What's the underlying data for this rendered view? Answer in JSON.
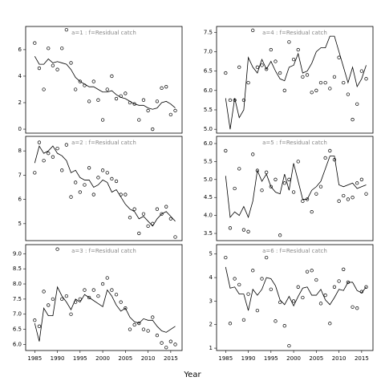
{
  "xlabel": "Year",
  "chart_data": [
    {
      "type": "line",
      "title": "a=1 : f=Residual catch",
      "x": [
        1985,
        1986,
        1987,
        1988,
        1989,
        1990,
        1991,
        1992,
        1993,
        1994,
        1995,
        1996,
        1997,
        1998,
        1999,
        2000,
        2001,
        2002,
        2003,
        2004,
        2005,
        2006,
        2007,
        2008,
        2009,
        2010,
        2011,
        2012,
        2013,
        2014,
        2015,
        2016
      ],
      "xlim": [
        1983,
        2017.5
      ],
      "ylim": [
        -0.3,
        7.75
      ],
      "yticks": [
        0,
        2,
        4,
        6
      ],
      "series": [
        {
          "marker": "circle",
          "color": "#000000",
          "values": [
            6.5,
            4.6,
            3.0,
            6.1,
            4.8,
            4.5,
            6.1,
            7.5,
            5.0,
            3.0,
            3.6,
            3.3,
            2.1,
            3.6,
            2.2,
            0.7,
            3.0,
            4.0,
            2.3,
            2.5,
            2.7,
            2.0,
            1.9,
            0.7,
            2.2,
            1.4,
            0.0,
            2.1,
            3.1,
            3.2,
            1.1,
            1.4
          ]
        },
        {
          "marker": "none",
          "color": "#000000",
          "values": [
            5.5,
            4.9,
            4.9,
            5.3,
            5.0,
            5.1,
            5.0,
            4.9,
            4.5,
            3.9,
            3.6,
            3.4,
            3.2,
            3.2,
            3.0,
            2.8,
            2.8,
            2.9,
            2.6,
            2.4,
            2.3,
            2.1,
            1.9,
            1.8,
            1.8,
            1.6,
            1.5,
            1.6,
            2.0,
            2.1,
            1.9,
            1.6
          ]
        }
      ]
    },
    {
      "type": "line",
      "title": "a=2 : f=Residual catch",
      "x": [
        1985,
        1986,
        1987,
        1988,
        1989,
        1990,
        1991,
        1992,
        1993,
        1994,
        1995,
        1996,
        1997,
        1998,
        1999,
        2000,
        2001,
        2002,
        2003,
        2004,
        2005,
        2006,
        2007,
        2008,
        2009,
        2010,
        2011,
        2012,
        2013,
        2014,
        2015,
        2016
      ],
      "xlim": [
        1983,
        2017.5
      ],
      "ylim": [
        4.3,
        8.6
      ],
      "yticks": [
        5,
        6,
        7,
        8
      ],
      "series": [
        {
          "marker": "circle",
          "color": "#000000",
          "values": [
            7.1,
            8.35,
            7.6,
            7.9,
            7.75,
            8.1,
            7.2,
            8.25,
            6.1,
            6.7,
            6.3,
            6.6,
            7.3,
            6.2,
            6.9,
            7.2,
            7.1,
            6.85,
            6.75,
            6.2,
            6.2,
            5.25,
            5.6,
            4.6,
            5.4,
            4.9,
            5.0,
            5.6,
            5.4,
            5.7,
            5.2,
            4.45
          ]
        },
        {
          "marker": "none",
          "color": "#000000",
          "values": [
            7.5,
            8.2,
            7.9,
            8.0,
            8.2,
            7.9,
            7.8,
            7.6,
            7.1,
            7.2,
            6.9,
            6.8,
            6.8,
            6.5,
            6.6,
            6.8,
            6.7,
            6.3,
            6.4,
            6.1,
            5.8,
            5.6,
            5.5,
            5.2,
            5.3,
            5.1,
            4.9,
            5.2,
            5.4,
            5.5,
            5.3,
            5.1
          ]
        }
      ]
    },
    {
      "type": "line",
      "title": "a=3 : f=Residual catch",
      "x": [
        1985,
        1986,
        1987,
        1988,
        1989,
        1990,
        1991,
        1992,
        1993,
        1994,
        1995,
        1996,
        1997,
        1998,
        1999,
        2000,
        2001,
        2002,
        2003,
        2004,
        2005,
        2006,
        2007,
        2008,
        2009,
        2010,
        2011,
        2012,
        2013,
        2014,
        2015,
        2016
      ],
      "xlim": [
        1983,
        2017.5
      ],
      "xticks": [
        1985,
        1990,
        1995,
        2000,
        2005,
        2010,
        2015
      ],
      "ylim": [
        5.8,
        9.3
      ],
      "yticks": [
        {
          "value": 6,
          "label": "6.0"
        },
        6.5,
        {
          "value": 7,
          "label": "7.0"
        },
        7.5,
        {
          "value": 8,
          "label": "8.0"
        },
        8.5,
        {
          "value": 9,
          "label": "9.0"
        }
      ],
      "series": [
        {
          "marker": "circle",
          "color": "#000000",
          "values": [
            6.8,
            6.6,
            7.75,
            7.3,
            7.5,
            9.15,
            7.5,
            7.6,
            7.0,
            7.4,
            7.5,
            7.8,
            7.55,
            7.8,
            7.6,
            8.0,
            8.2,
            7.8,
            7.65,
            7.4,
            7.2,
            6.5,
            6.65,
            6.7,
            6.5,
            6.45,
            6.9,
            6.3,
            6.05,
            5.9,
            6.1,
            6.0
          ]
        },
        {
          "marker": "none",
          "color": "#000000",
          "values": [
            6.7,
            6.1,
            7.2,
            6.95,
            6.95,
            7.9,
            7.6,
            7.4,
            7.15,
            7.5,
            7.4,
            7.65,
            7.55,
            7.45,
            7.35,
            7.25,
            7.8,
            7.6,
            7.3,
            7.1,
            7.2,
            6.9,
            6.75,
            6.7,
            6.85,
            6.8,
            6.8,
            6.6,
            6.45,
            6.4,
            6.5,
            6.6
          ]
        }
      ]
    },
    {
      "type": "line",
      "title": "a=4 : f=Residual catch",
      "x": [
        1985,
        1986,
        1987,
        1988,
        1989,
        1990,
        1991,
        1992,
        1993,
        1994,
        1995,
        1996,
        1997,
        1998,
        1999,
        2000,
        2001,
        2002,
        2003,
        2004,
        2005,
        2006,
        2007,
        2008,
        2009,
        2010,
        2011,
        2012,
        2013,
        2014,
        2015,
        2016
      ],
      "xlim": [
        1983,
        2017.5
      ],
      "ylim": [
        4.9,
        7.65
      ],
      "yticks": [
        {
          "value": 5,
          "label": "5.0"
        },
        5.5,
        {
          "value": 6,
          "label": "6.0"
        },
        6.5,
        {
          "value": 7,
          "label": "7.0"
        },
        7.5
      ],
      "series": [
        {
          "marker": "circle",
          "color": "#000000",
          "values": [
            6.45,
            5.75,
            5.75,
            6.6,
            5.75,
            6.2,
            7.55,
            6.6,
            6.65,
            6.55,
            7.05,
            6.75,
            6.45,
            6.0,
            7.25,
            6.8,
            7.05,
            6.35,
            6.4,
            5.95,
            6.0,
            6.2,
            6.2,
            6.05,
            6.35,
            6.85,
            6.2,
            5.9,
            5.25,
            5.65,
            6.5,
            6.3
          ]
        },
        {
          "marker": "none",
          "color": "#000000",
          "values": [
            5.8,
            5.0,
            5.8,
            5.3,
            5.5,
            6.85,
            6.6,
            6.45,
            6.8,
            6.55,
            6.75,
            6.5,
            6.3,
            6.25,
            6.6,
            6.65,
            6.95,
            6.45,
            6.5,
            6.7,
            7.0,
            7.1,
            7.1,
            7.4,
            7.4,
            7.0,
            6.6,
            6.2,
            6.6,
            6.1,
            6.3,
            6.65
          ]
        }
      ]
    },
    {
      "type": "line",
      "title": "a=5 : f=Residual catch",
      "x": [
        1985,
        1986,
        1987,
        1988,
        1989,
        1990,
        1991,
        1992,
        1993,
        1994,
        1995,
        1996,
        1997,
        1998,
        1999,
        2000,
        2001,
        2002,
        2003,
        2004,
        2005,
        2006,
        2007,
        2008,
        2009,
        2010,
        2011,
        2012,
        2013,
        2014,
        2015,
        2016
      ],
      "xlim": [
        1983,
        2017.5
      ],
      "ylim": [
        3.3,
        6.2
      ],
      "yticks": [
        3.5,
        {
          "value": 4,
          "label": "4.0"
        },
        4.5,
        {
          "value": 5,
          "label": "5.0"
        },
        5.5,
        {
          "value": 6,
          "label": "6.0"
        }
      ],
      "series": [
        {
          "marker": "circle",
          "color": "#000000",
          "values": [
            5.8,
            3.65,
            4.75,
            5.3,
            3.6,
            3.55,
            5.7,
            5.25,
            4.7,
            5.2,
            4.8,
            5.0,
            3.45,
            4.9,
            5.0,
            4.65,
            5.5,
            4.4,
            4.45,
            4.1,
            4.6,
            4.8,
            5.6,
            5.8,
            5.55,
            4.4,
            4.55,
            4.45,
            4.5,
            4.9,
            5.0,
            4.6
          ]
        },
        {
          "marker": "none",
          "color": "#000000",
          "values": [
            5.1,
            3.95,
            4.1,
            4.0,
            4.25,
            3.95,
            4.4,
            5.25,
            4.95,
            5.15,
            4.8,
            4.65,
            4.6,
            5.15,
            4.7,
            5.45,
            4.95,
            4.45,
            4.45,
            4.7,
            4.8,
            4.95,
            5.3,
            5.65,
            5.65,
            4.85,
            4.8,
            4.85,
            4.9,
            4.75,
            4.8,
            4.85
          ]
        }
      ]
    },
    {
      "type": "line",
      "title": "a=6 : f=Residual catch",
      "x": [
        1985,
        1986,
        1987,
        1988,
        1989,
        1990,
        1991,
        1992,
        1993,
        1994,
        1995,
        1996,
        1997,
        1998,
        1999,
        2000,
        2001,
        2002,
        2003,
        2004,
        2005,
        2006,
        2007,
        2008,
        2009,
        2010,
        2011,
        2012,
        2013,
        2014,
        2015,
        2016
      ],
      "xlim": [
        1983,
        2017.5
      ],
      "xticks": [
        1985,
        1990,
        1995,
        2000,
        2005,
        2010,
        2015
      ],
      "ylim": [
        0.9,
        5.4
      ],
      "yticks": [
        1,
        2,
        3,
        4,
        5
      ],
      "series": [
        {
          "marker": "circle",
          "color": "#000000",
          "values": [
            4.85,
            2.05,
            3.95,
            3.7,
            2.2,
            3.3,
            4.3,
            2.6,
            3.95,
            4.85,
            3.5,
            2.15,
            2.95,
            1.95,
            1.1,
            3.0,
            3.6,
            3.15,
            4.25,
            4.3,
            3.9,
            2.9,
            3.25,
            2.05,
            3.6,
            3.85,
            4.35,
            3.8,
            2.75,
            2.7,
            3.4,
            3.6
          ]
        },
        {
          "marker": "none",
          "color": "#000000",
          "values": [
            4.45,
            3.55,
            3.6,
            3.3,
            3.3,
            2.6,
            3.5,
            3.25,
            3.5,
            4.0,
            3.95,
            3.65,
            3.05,
            2.85,
            3.2,
            2.8,
            3.2,
            3.55,
            3.6,
            3.25,
            3.25,
            3.5,
            3.05,
            2.85,
            3.15,
            3.5,
            3.45,
            3.8,
            3.8,
            3.45,
            3.35,
            3.6
          ]
        }
      ]
    }
  ]
}
